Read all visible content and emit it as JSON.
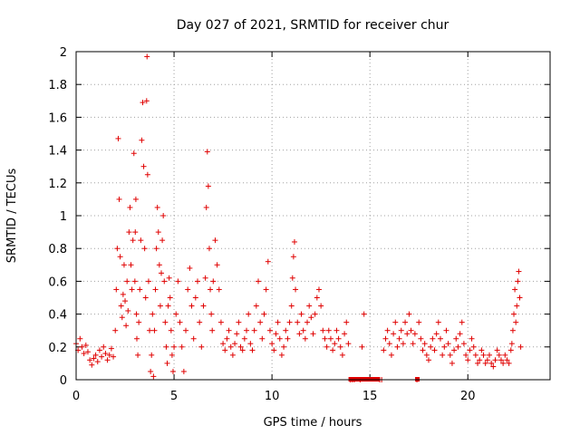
{
  "chart_data": {
    "type": "scatter",
    "title": "Day 027 of 2021, SRMTID for receiver chur",
    "xlabel": "GPS time / hours",
    "ylabel": "SRMTID / TECUs",
    "xlim": [
      0,
      24.2
    ],
    "ylim": [
      0,
      2
    ],
    "xticks": [
      0,
      5,
      10,
      15,
      20
    ],
    "xtick_labels": [
      "0",
      "5",
      "10",
      "15",
      "20"
    ],
    "yticks": [
      0,
      0.2,
      0.4,
      0.6,
      0.8,
      1,
      1.2,
      1.4,
      1.6,
      1.8,
      2
    ],
    "ytick_labels": [
      "0",
      "0.2",
      "0.4",
      "0.6",
      "0.8",
      "1",
      "1.2",
      "1.4",
      "1.6",
      "1.8",
      "2"
    ],
    "grid": true,
    "marker": "+",
    "color": "#e00000",
    "series": [
      {
        "name": "SRMTID",
        "x": [
          0.0,
          0.1,
          0.2,
          0.3,
          0.4,
          0.5,
          0.6,
          0.7,
          0.8,
          0.9,
          1.0,
          1.1,
          1.2,
          1.3,
          1.4,
          1.5,
          1.6,
          1.7,
          1.8,
          1.9,
          2.0,
          2.05,
          2.1,
          2.15,
          2.2,
          2.25,
          2.3,
          2.35,
          2.4,
          2.45,
          2.5,
          2.55,
          2.6,
          2.65,
          2.7,
          2.75,
          2.8,
          2.85,
          2.9,
          2.95,
          3.0,
          3.02,
          3.05,
          3.08,
          3.1,
          3.15,
          3.2,
          3.25,
          3.3,
          3.35,
          3.4,
          3.45,
          3.5,
          3.55,
          3.6,
          3.62,
          3.65,
          3.7,
          3.75,
          3.8,
          3.85,
          3.9,
          3.95,
          4.0,
          4.05,
          4.1,
          4.15,
          4.2,
          4.25,
          4.3,
          4.35,
          4.4,
          4.45,
          4.5,
          4.55,
          4.6,
          4.65,
          4.7,
          4.75,
          4.8,
          4.85,
          4.9,
          4.95,
          5.0,
          5.1,
          5.2,
          5.3,
          5.4,
          5.5,
          5.6,
          5.7,
          5.8,
          5.9,
          6.0,
          6.1,
          6.2,
          6.3,
          6.4,
          6.5,
          6.6,
          6.65,
          6.7,
          6.75,
          6.8,
          6.85,
          6.9,
          6.95,
          7.0,
          7.1,
          7.2,
          7.3,
          7.4,
          7.5,
          7.6,
          7.7,
          7.8,
          7.9,
          8.0,
          8.1,
          8.2,
          8.3,
          8.4,
          8.5,
          8.6,
          8.7,
          8.8,
          8.9,
          9.0,
          9.1,
          9.2,
          9.3,
          9.4,
          9.5,
          9.6,
          9.7,
          9.8,
          9.9,
          10.0,
          10.1,
          10.2,
          10.3,
          10.4,
          10.5,
          10.6,
          10.7,
          10.8,
          10.9,
          11.0,
          11.05,
          11.1,
          11.15,
          11.2,
          11.3,
          11.4,
          11.5,
          11.6,
          11.7,
          11.8,
          11.9,
          12.0,
          12.1,
          12.2,
          12.3,
          12.4,
          12.5,
          12.6,
          12.7,
          12.8,
          12.9,
          13.0,
          13.1,
          13.2,
          13.3,
          13.4,
          13.5,
          13.6,
          13.7,
          13.8,
          13.9,
          14.0,
          14.1,
          14.2,
          14.5,
          14.6,
          14.7,
          15.5,
          15.6,
          15.7,
          15.8,
          15.9,
          16.0,
          16.1,
          16.2,
          16.3,
          16.4,
          16.5,
          16.6,
          16.7,
          16.8,
          16.9,
          17.0,
          17.1,
          17.2,
          17.3,
          17.4,
          17.5,
          17.6,
          17.7,
          17.8,
          17.9,
          18.0,
          18.1,
          18.2,
          18.3,
          18.4,
          18.5,
          18.6,
          18.7,
          18.8,
          18.9,
          19.0,
          19.1,
          19.2,
          19.3,
          19.4,
          19.5,
          19.6,
          19.7,
          19.8,
          19.9,
          20.0,
          20.1,
          20.2,
          20.3,
          20.4,
          20.5,
          20.6,
          20.7,
          20.8,
          20.9,
          21.0,
          21.1,
          21.2,
          21.3,
          21.4,
          21.5,
          21.6,
          21.7,
          21.8,
          21.9,
          22.0,
          22.1,
          22.2,
          22.25,
          22.3,
          22.35,
          22.4,
          22.45,
          22.5,
          22.55,
          22.6,
          22.65,
          22.7
        ],
        "y": [
          0.22,
          0.18,
          0.25,
          0.2,
          0.16,
          0.21,
          0.17,
          0.12,
          0.09,
          0.13,
          0.15,
          0.11,
          0.18,
          0.14,
          0.2,
          0.16,
          0.12,
          0.15,
          0.19,
          0.14,
          0.3,
          0.55,
          0.8,
          1.47,
          1.1,
          0.75,
          0.45,
          0.38,
          0.52,
          0.7,
          0.48,
          0.33,
          0.6,
          0.42,
          0.9,
          1.05,
          0.7,
          0.55,
          0.85,
          1.38,
          0.6,
          0.9,
          1.1,
          0.4,
          0.25,
          0.15,
          0.35,
          0.55,
          0.85,
          1.46,
          1.69,
          1.3,
          0.8,
          0.5,
          1.7,
          1.97,
          1.25,
          0.6,
          0.3,
          0.05,
          0.15,
          0.4,
          0.02,
          0.3,
          0.55,
          0.8,
          1.05,
          0.9,
          0.7,
          0.45,
          0.65,
          0.85,
          1.0,
          0.6,
          0.35,
          0.2,
          0.1,
          0.45,
          0.62,
          0.5,
          0.3,
          0.15,
          0.05,
          0.2,
          0.4,
          0.6,
          0.35,
          0.2,
          0.05,
          0.3,
          0.55,
          0.68,
          0.45,
          0.25,
          0.5,
          0.6,
          0.35,
          0.2,
          0.45,
          0.62,
          1.05,
          1.39,
          1.18,
          0.8,
          0.55,
          0.4,
          0.3,
          0.6,
          0.85,
          0.7,
          0.55,
          0.35,
          0.22,
          0.18,
          0.25,
          0.3,
          0.2,
          0.15,
          0.22,
          0.28,
          0.35,
          0.2,
          0.18,
          0.25,
          0.3,
          0.4,
          0.22,
          0.18,
          0.3,
          0.45,
          0.6,
          0.35,
          0.25,
          0.4,
          0.55,
          0.72,
          0.3,
          0.22,
          0.18,
          0.28,
          0.35,
          0.25,
          0.15,
          0.2,
          0.3,
          0.25,
          0.35,
          0.45,
          0.62,
          0.75,
          0.84,
          0.55,
          0.35,
          0.28,
          0.4,
          0.3,
          0.25,
          0.35,
          0.45,
          0.38,
          0.28,
          0.4,
          0.5,
          0.55,
          0.45,
          0.3,
          0.25,
          0.2,
          0.3,
          0.25,
          0.18,
          0.22,
          0.3,
          0.25,
          0.2,
          0.15,
          0.28,
          0.35,
          0.22,
          0.0,
          0.0,
          0.0,
          0.0,
          0.2,
          0.4,
          0.0,
          0.0,
          0.18,
          0.25,
          0.3,
          0.22,
          0.15,
          0.28,
          0.35,
          0.2,
          0.25,
          0.3,
          0.22,
          0.35,
          0.28,
          0.4,
          0.3,
          0.22,
          0.28,
          0.0,
          0.35,
          0.25,
          0.18,
          0.22,
          0.15,
          0.12,
          0.2,
          0.25,
          0.18,
          0.28,
          0.35,
          0.25,
          0.15,
          0.2,
          0.3,
          0.22,
          0.15,
          0.1,
          0.18,
          0.25,
          0.2,
          0.28,
          0.35,
          0.22,
          0.15,
          0.12,
          0.18,
          0.25,
          0.2,
          0.15,
          0.1,
          0.12,
          0.18,
          0.15,
          0.1,
          0.12,
          0.15,
          0.1,
          0.08,
          0.12,
          0.18,
          0.15,
          0.12,
          0.1,
          0.15,
          0.12,
          0.1,
          0.18,
          0.22,
          0.3,
          0.4,
          0.55,
          0.35,
          0.45,
          0.6,
          0.66,
          0.5,
          0.2
        ]
      }
    ],
    "data_gap_markers_x": [
      14.0,
      14.2,
      14.4,
      14.6,
      14.8,
      15.0,
      15.2,
      15.35,
      17.4
    ]
  }
}
